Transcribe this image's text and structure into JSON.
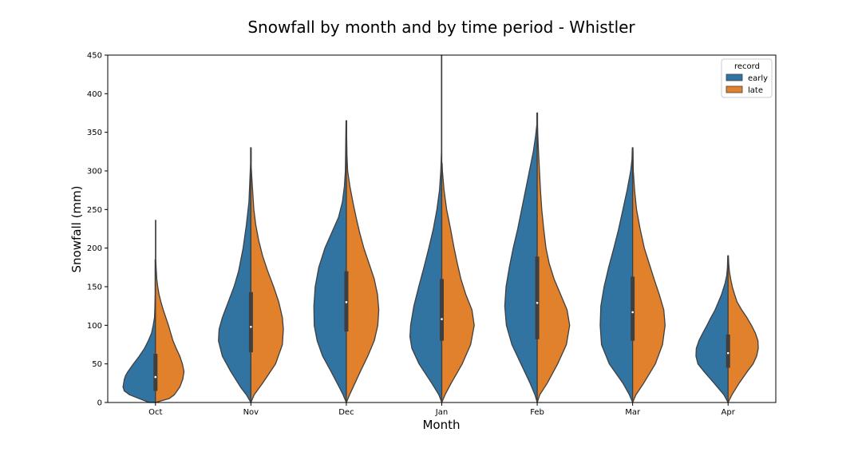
{
  "chart_data": {
    "type": "violin",
    "title": "Snowfall by month and by time period - Whistler",
    "xlabel": "Month",
    "ylabel": "Snowfall (mm)",
    "categories": [
      "Oct",
      "Nov",
      "Dec",
      "Jan",
      "Feb",
      "Mar",
      "Apr"
    ],
    "ylim": [
      0,
      450
    ],
    "yticks": [
      0,
      50,
      100,
      150,
      200,
      250,
      300,
      350,
      400,
      450
    ],
    "grid": false,
    "split": true,
    "legend": {
      "title": "record",
      "position": "top-right"
    },
    "series": [
      {
        "name": "early",
        "color": "#3274a1",
        "side": "left",
        "profiles": [
          [
            [
              0,
              0.19
            ],
            [
              5,
              0.5
            ],
            [
              10,
              0.8
            ],
            [
              15,
              0.96
            ],
            [
              20,
              1.0
            ],
            [
              25,
              0.98
            ],
            [
              30,
              0.96
            ],
            [
              35,
              0.92
            ],
            [
              40,
              0.85
            ],
            [
              50,
              0.68
            ],
            [
              60,
              0.5
            ],
            [
              70,
              0.34
            ],
            [
              80,
              0.22
            ],
            [
              90,
              0.12
            ],
            [
              100,
              0.07
            ],
            [
              110,
              0.03
            ],
            [
              120,
              0.02
            ],
            [
              140,
              0.01
            ],
            [
              160,
              0.01
            ],
            [
              185,
              0.01
            ]
          ],
          [
            [
              0,
              0.0
            ],
            [
              10,
              0.14
            ],
            [
              20,
              0.32
            ],
            [
              40,
              0.62
            ],
            [
              60,
              0.88
            ],
            [
              80,
              1.0
            ],
            [
              95,
              0.98
            ],
            [
              110,
              0.88
            ],
            [
              130,
              0.7
            ],
            [
              150,
              0.52
            ],
            [
              170,
              0.38
            ],
            [
              200,
              0.24
            ],
            [
              230,
              0.14
            ],
            [
              260,
              0.06
            ],
            [
              290,
              0.03
            ],
            [
              310,
              0.01
            ],
            [
              330,
              0.01
            ]
          ],
          [
            [
              0,
              0.0
            ],
            [
              10,
              0.1
            ],
            [
              20,
              0.22
            ],
            [
              40,
              0.47
            ],
            [
              60,
              0.73
            ],
            [
              80,
              0.9
            ],
            [
              100,
              0.99
            ],
            [
              125,
              1.0
            ],
            [
              150,
              0.96
            ],
            [
              175,
              0.85
            ],
            [
              200,
              0.66
            ],
            [
              220,
              0.45
            ],
            [
              240,
              0.24
            ],
            [
              260,
              0.12
            ],
            [
              280,
              0.06
            ],
            [
              300,
              0.03
            ],
            [
              330,
              0.02
            ],
            [
              365,
              0.01
            ]
          ],
          [
            [
              0,
              0.0
            ],
            [
              10,
              0.09
            ],
            [
              25,
              0.31
            ],
            [
              50,
              0.7
            ],
            [
              70,
              0.92
            ],
            [
              85,
              0.98
            ],
            [
              100,
              0.96
            ],
            [
              125,
              0.86
            ],
            [
              150,
              0.71
            ],
            [
              175,
              0.55
            ],
            [
              200,
              0.4
            ],
            [
              225,
              0.26
            ],
            [
              250,
              0.15
            ],
            [
              275,
              0.07
            ],
            [
              300,
              0.03
            ],
            [
              325,
              0.01
            ],
            [
              360,
              0.01
            ],
            [
              400,
              0.01
            ],
            [
              450,
              0.01
            ]
          ],
          [
            [
              0,
              0.0
            ],
            [
              10,
              0.07
            ],
            [
              25,
              0.22
            ],
            [
              50,
              0.5
            ],
            [
              75,
              0.78
            ],
            [
              100,
              0.95
            ],
            [
              125,
              1.0
            ],
            [
              150,
              0.96
            ],
            [
              175,
              0.86
            ],
            [
              200,
              0.74
            ],
            [
              225,
              0.6
            ],
            [
              250,
              0.48
            ],
            [
              275,
              0.36
            ],
            [
              300,
              0.24
            ],
            [
              325,
              0.12
            ],
            [
              345,
              0.05
            ],
            [
              360,
              0.01
            ],
            [
              375,
              0.01
            ]
          ],
          [
            [
              0,
              0.0
            ],
            [
              10,
              0.1
            ],
            [
              25,
              0.3
            ],
            [
              50,
              0.72
            ],
            [
              75,
              0.96
            ],
            [
              100,
              1.0
            ],
            [
              125,
              0.98
            ],
            [
              150,
              0.88
            ],
            [
              175,
              0.74
            ],
            [
              200,
              0.58
            ],
            [
              225,
              0.43
            ],
            [
              250,
              0.3
            ],
            [
              275,
              0.17
            ],
            [
              300,
              0.06
            ],
            [
              315,
              0.02
            ],
            [
              330,
              0.01
            ]
          ],
          [
            [
              0,
              0.0
            ],
            [
              10,
              0.13
            ],
            [
              25,
              0.43
            ],
            [
              40,
              0.74
            ],
            [
              50,
              0.93
            ],
            [
              60,
              0.99
            ],
            [
              70,
              0.98
            ],
            [
              80,
              0.9
            ],
            [
              90,
              0.78
            ],
            [
              100,
              0.65
            ],
            [
              110,
              0.53
            ],
            [
              120,
              0.4
            ],
            [
              130,
              0.3
            ],
            [
              140,
              0.2
            ],
            [
              155,
              0.09
            ],
            [
              165,
              0.04
            ],
            [
              175,
              0.02
            ],
            [
              190,
              0.01
            ]
          ]
        ],
        "quartiles": [
          [
            15,
            33,
            63
          ],
          [
            65,
            98,
            143
          ],
          [
            92,
            130,
            170
          ],
          [
            80,
            108,
            160
          ],
          [
            82,
            129,
            189
          ],
          [
            80,
            117,
            163
          ],
          [
            45,
            64,
            88
          ]
        ]
      },
      {
        "name": "late",
        "color": "#e1812c",
        "side": "right",
        "profiles": [
          [
            [
              0,
              0.0
            ],
            [
              5,
              0.42
            ],
            [
              10,
              0.58
            ],
            [
              20,
              0.75
            ],
            [
              30,
              0.84
            ],
            [
              40,
              0.88
            ],
            [
              50,
              0.83
            ],
            [
              60,
              0.75
            ],
            [
              70,
              0.64
            ],
            [
              80,
              0.54
            ],
            [
              90,
              0.47
            ],
            [
              100,
              0.4
            ],
            [
              110,
              0.32
            ],
            [
              120,
              0.24
            ],
            [
              130,
              0.17
            ],
            [
              140,
              0.11
            ],
            [
              150,
              0.07
            ],
            [
              160,
              0.04
            ],
            [
              175,
              0.02
            ],
            [
              185,
              0.01
            ],
            [
              200,
              0.01
            ],
            [
              215,
              0.01
            ],
            [
              236,
              0.01
            ]
          ],
          [
            [
              0,
              0.0
            ],
            [
              10,
              0.1
            ],
            [
              25,
              0.36
            ],
            [
              50,
              0.76
            ],
            [
              75,
              0.97
            ],
            [
              95,
              1.0
            ],
            [
              110,
              0.97
            ],
            [
              130,
              0.86
            ],
            [
              150,
              0.7
            ],
            [
              170,
              0.52
            ],
            [
              190,
              0.36
            ],
            [
              210,
              0.24
            ],
            [
              230,
              0.15
            ],
            [
              250,
              0.09
            ],
            [
              270,
              0.06
            ],
            [
              290,
              0.03
            ],
            [
              305,
              0.01
            ],
            [
              330,
              0.01
            ]
          ],
          [
            [
              0,
              0.0
            ],
            [
              10,
              0.1
            ],
            [
              20,
              0.21
            ],
            [
              40,
              0.43
            ],
            [
              60,
              0.66
            ],
            [
              80,
              0.86
            ],
            [
              100,
              0.97
            ],
            [
              120,
              1.0
            ],
            [
              140,
              0.96
            ],
            [
              160,
              0.86
            ],
            [
              180,
              0.7
            ],
            [
              200,
              0.54
            ],
            [
              220,
              0.41
            ],
            [
              240,
              0.3
            ],
            [
              260,
              0.2
            ],
            [
              280,
              0.11
            ],
            [
              300,
              0.04
            ],
            [
              320,
              0.02
            ],
            [
              345,
              0.01
            ],
            [
              365,
              0.01
            ]
          ],
          [
            [
              0,
              0.0
            ],
            [
              10,
              0.1
            ],
            [
              25,
              0.29
            ],
            [
              50,
              0.63
            ],
            [
              75,
              0.89
            ],
            [
              100,
              1.0
            ],
            [
              120,
              0.93
            ],
            [
              140,
              0.74
            ],
            [
              160,
              0.59
            ],
            [
              180,
              0.48
            ],
            [
              200,
              0.38
            ],
            [
              225,
              0.27
            ],
            [
              250,
              0.15
            ],
            [
              275,
              0.07
            ],
            [
              300,
              0.02
            ],
            [
              310,
              0.01
            ]
          ],
          [
            [
              0,
              0.0
            ],
            [
              10,
              0.08
            ],
            [
              25,
              0.31
            ],
            [
              50,
              0.63
            ],
            [
              75,
              0.9
            ],
            [
              100,
              1.0
            ],
            [
              120,
              0.92
            ],
            [
              140,
              0.72
            ],
            [
              160,
              0.52
            ],
            [
              180,
              0.37
            ],
            [
              200,
              0.27
            ],
            [
              225,
              0.2
            ],
            [
              250,
              0.14
            ],
            [
              275,
              0.1
            ],
            [
              300,
              0.07
            ],
            [
              325,
              0.04
            ],
            [
              345,
              0.02
            ],
            [
              360,
              0.01
            ],
            [
              375,
              0.01
            ]
          ],
          [
            [
              0,
              0.0
            ],
            [
              10,
              0.1
            ],
            [
              25,
              0.34
            ],
            [
              50,
              0.7
            ],
            [
              75,
              0.92
            ],
            [
              100,
              1.0
            ],
            [
              120,
              0.96
            ],
            [
              140,
              0.82
            ],
            [
              160,
              0.66
            ],
            [
              180,
              0.51
            ],
            [
              200,
              0.36
            ],
            [
              225,
              0.23
            ],
            [
              250,
              0.12
            ],
            [
              275,
              0.06
            ],
            [
              300,
              0.02
            ],
            [
              330,
              0.01
            ]
          ],
          [
            [
              0,
              0.0
            ],
            [
              10,
              0.12
            ],
            [
              25,
              0.34
            ],
            [
              40,
              0.59
            ],
            [
              50,
              0.77
            ],
            [
              60,
              0.88
            ],
            [
              70,
              0.93
            ],
            [
              80,
              0.92
            ],
            [
              90,
              0.84
            ],
            [
              100,
              0.72
            ],
            [
              110,
              0.58
            ],
            [
              120,
              0.42
            ],
            [
              130,
              0.28
            ],
            [
              140,
              0.2
            ],
            [
              150,
              0.13
            ],
            [
              160,
              0.08
            ],
            [
              170,
              0.04
            ],
            [
              180,
              0.02
            ],
            [
              190,
              0.01
            ]
          ]
        ]
      }
    ]
  }
}
